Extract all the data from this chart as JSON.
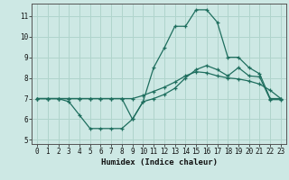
{
  "xlabel": "Humidex (Indice chaleur)",
  "background_color": "#cde8e4",
  "grid_color": "#b0d4cc",
  "line_color": "#1e6e5e",
  "xlim": [
    -0.5,
    23.5
  ],
  "ylim": [
    4.8,
    11.6
  ],
  "xticks": [
    0,
    1,
    2,
    3,
    4,
    5,
    6,
    7,
    8,
    9,
    10,
    11,
    12,
    13,
    14,
    15,
    16,
    17,
    18,
    19,
    20,
    21,
    22,
    23
  ],
  "yticks": [
    5,
    6,
    7,
    8,
    9,
    10,
    11
  ],
  "line1_x": [
    0,
    1,
    2,
    3,
    4,
    5,
    6,
    7,
    8,
    9,
    10,
    11,
    12,
    13,
    14,
    15,
    16,
    17,
    18,
    19,
    20,
    21,
    22,
    23
  ],
  "line1_y": [
    7.0,
    7.0,
    7.0,
    6.85,
    6.2,
    5.55,
    5.55,
    5.55,
    5.55,
    6.0,
    6.85,
    7.0,
    7.2,
    7.5,
    8.0,
    8.4,
    8.6,
    8.4,
    8.1,
    8.5,
    8.1,
    8.05,
    6.95,
    6.95
  ],
  "line2_x": [
    0,
    1,
    2,
    3,
    4,
    5,
    6,
    7,
    8,
    9,
    10,
    11,
    12,
    13,
    14,
    15,
    16,
    17,
    18,
    19,
    20,
    21,
    22,
    23
  ],
  "line2_y": [
    7.0,
    7.0,
    7.0,
    7.0,
    7.0,
    7.0,
    7.0,
    7.0,
    7.0,
    7.0,
    7.15,
    7.35,
    7.55,
    7.8,
    8.1,
    8.3,
    8.25,
    8.1,
    8.0,
    7.95,
    7.85,
    7.7,
    7.4,
    7.0
  ],
  "line3_x": [
    0,
    1,
    2,
    3,
    4,
    5,
    6,
    7,
    8,
    9,
    10,
    11,
    12,
    13,
    14,
    15,
    16,
    17,
    18,
    19,
    20,
    21,
    22,
    23
  ],
  "line3_y": [
    7.0,
    7.0,
    7.0,
    7.0,
    7.0,
    7.0,
    7.0,
    7.0,
    7.0,
    6.0,
    6.85,
    8.5,
    9.45,
    10.5,
    10.5,
    11.3,
    11.3,
    10.7,
    9.0,
    9.0,
    8.5,
    8.2,
    7.0,
    7.0
  ]
}
